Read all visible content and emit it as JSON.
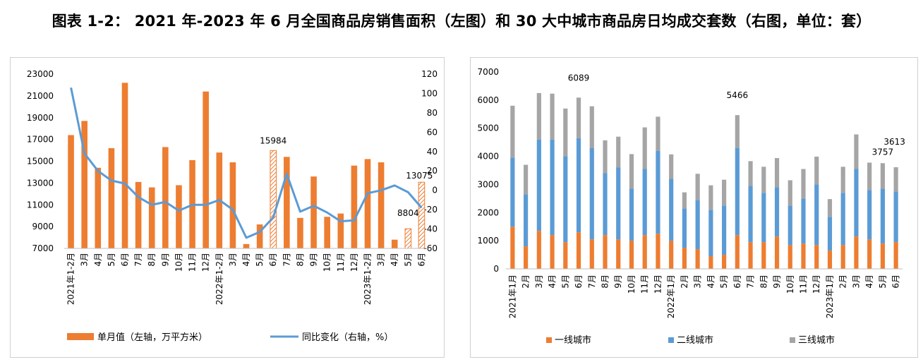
{
  "page": {
    "title": "图表 1-2：  2021 年-2023 年 6 月全国商品房销售面积（左图）和 30 大中城市商品房日均成交套数（右图，单位：套）"
  },
  "colors": {
    "bar": "#ED7D31",
    "line": "#5B9BD5",
    "tier1": "#ED7D31",
    "tier2": "#5B9BD5",
    "tier3": "#A5A5A5",
    "axis": "#BFBFBF",
    "panel_border": "#D0D0D0"
  },
  "chart_data": [
    {
      "type": "bar",
      "secondary_type": "line",
      "categories": [
        "2021年1-2月",
        "3月",
        "4月",
        "5月",
        "6月",
        "7月",
        "8月",
        "9月",
        "10月",
        "11月",
        "12月",
        "2022年1-2月",
        "3月",
        "4月",
        "5月",
        "6月",
        "7月",
        "8月",
        "9月",
        "10月",
        "11月",
        "12月",
        "2023年1-2月",
        "3月",
        "4月",
        "5月",
        "6月"
      ],
      "series": [
        {
          "name": "单月值（左轴，万平方米）",
          "axis": "left",
          "values": [
            17400,
            18700,
            14400,
            16200,
            22200,
            13100,
            12600,
            16300,
            12800,
            15100,
            21400,
            15800,
            14900,
            7400,
            9200,
            15984,
            15400,
            9800,
            13600,
            9900,
            10200,
            14600,
            15200,
            14900,
            7800,
            8804,
            13075
          ],
          "hatched_indices": [
            15,
            25,
            26
          ]
        },
        {
          "name": "同比变化（右轴，%）",
          "axis": "right",
          "values": [
            106,
            38,
            20,
            10,
            7,
            -7,
            -15,
            -12,
            -21,
            -15,
            -15,
            -10,
            -20,
            -49,
            -43,
            -28,
            17,
            -22,
            -16,
            -23,
            -32,
            -31,
            -3,
            0,
            5,
            -2,
            -18
          ]
        }
      ],
      "data_labels": [
        {
          "index": 15,
          "text": "15984"
        },
        {
          "index": 25,
          "text": "8804"
        },
        {
          "index": 26,
          "text": "13075"
        }
      ],
      "left_axis": {
        "min": 7000,
        "max": 23000,
        "ticks": [
          "7000",
          "9000",
          "11000",
          "13000",
          "15000",
          "17000",
          "19000",
          "21000",
          "23000"
        ]
      },
      "right_axis": {
        "min": -60,
        "max": 120,
        "ticks": [
          "-60",
          "-40",
          "-20",
          "0",
          "20",
          "40",
          "60",
          "80",
          "100",
          "120"
        ]
      },
      "legend": {
        "position": "bottom",
        "bar_label": "单月值（左轴，万平方米）",
        "line_label": "同比变化（右轴，%）"
      }
    },
    {
      "type": "bar",
      "stacked": true,
      "categories": [
        "2021年1月",
        "2月",
        "3月",
        "4月",
        "5月",
        "6月",
        "7月",
        "8月",
        "9月",
        "10月",
        "11月",
        "12月",
        "2022年1月",
        "2月",
        "3月",
        "4月",
        "5月",
        "6月",
        "7月",
        "8月",
        "9月",
        "10月",
        "11月",
        "12月",
        "2023年1月",
        "2月",
        "3月",
        "4月",
        "5月",
        "6月"
      ],
      "series": [
        {
          "name": "一线城市",
          "values": [
            1500,
            800,
            1350,
            1200,
            950,
            1300,
            1050,
            1200,
            1050,
            1000,
            1200,
            1250,
            1000,
            750,
            700,
            450,
            500,
            1200,
            950,
            950,
            1150,
            850,
            900,
            850,
            650,
            850,
            1150,
            1050,
            900,
            950
          ]
        },
        {
          "name": "二线城市",
          "values": [
            2450,
            1850,
            3250,
            3400,
            3050,
            3350,
            3250,
            2200,
            2550,
            1850,
            2350,
            2950,
            2200,
            1400,
            1750,
            1650,
            1750,
            3100,
            2000,
            1750,
            1750,
            1400,
            1600,
            2150,
            1200,
            1850,
            2400,
            1750,
            1950,
            1800
          ]
        },
        {
          "name": "三线城市",
          "values": [
            1850,
            1050,
            1650,
            1630,
            1700,
            1439,
            1480,
            1170,
            1100,
            1230,
            1480,
            1210,
            870,
            570,
            930,
            870,
            920,
            1166,
            880,
            930,
            1040,
            900,
            1050,
            990,
            630,
            930,
            1230,
            977,
            907,
            863
          ]
        }
      ],
      "data_labels": [
        {
          "index": 5,
          "text": "6089"
        },
        {
          "index": 17,
          "text": "5466"
        },
        {
          "index": 28,
          "text": "3757"
        },
        {
          "index": 29,
          "text": "3613"
        }
      ],
      "y_axis": {
        "min": 0,
        "max": 7000,
        "ticks": [
          "0",
          "1000",
          "2000",
          "3000",
          "4000",
          "5000",
          "6000",
          "7000"
        ]
      },
      "legend": {
        "position": "bottom",
        "items": [
          "一线城市",
          "二线城市",
          "三线城市"
        ]
      }
    }
  ]
}
